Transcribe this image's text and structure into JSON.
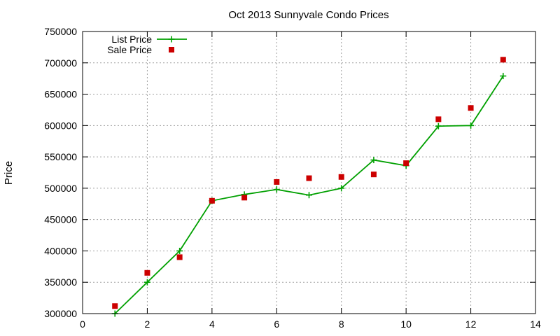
{
  "chart_data": {
    "type": "line",
    "title": "Oct 2013 Sunnyvale Condo Prices",
    "xlabel": "",
    "ylabel": "Price",
    "xlim": [
      0,
      14
    ],
    "ylim": [
      300000,
      750000
    ],
    "x_ticks": [
      0,
      2,
      4,
      6,
      8,
      10,
      12,
      14
    ],
    "y_ticks": [
      300000,
      350000,
      400000,
      450000,
      500000,
      550000,
      600000,
      650000,
      700000,
      750000
    ],
    "grid": true,
    "legend_position": "top-left",
    "series": [
      {
        "name": "List Price",
        "style": "line+plus",
        "color": "#00a000",
        "points": [
          [
            1,
            300000
          ],
          [
            2,
            350000
          ],
          [
            3,
            400000
          ],
          [
            4,
            480000
          ],
          [
            5,
            490000
          ],
          [
            6,
            498000
          ],
          [
            7,
            489000
          ],
          [
            8,
            500000
          ],
          [
            9,
            545000
          ],
          [
            10,
            536000
          ],
          [
            11,
            599000
          ],
          [
            12,
            600000
          ],
          [
            13,
            679000
          ]
        ]
      },
      {
        "name": "Sale Price",
        "style": "square",
        "color": "#cc0000",
        "points": [
          [
            1,
            312000
          ],
          [
            2,
            365000
          ],
          [
            3,
            390000
          ],
          [
            4,
            480000
          ],
          [
            5,
            485000
          ],
          [
            6,
            510000
          ],
          [
            7,
            516000
          ],
          [
            8,
            518000
          ],
          [
            9,
            522000
          ],
          [
            10,
            540000
          ],
          [
            11,
            610000
          ],
          [
            12,
            628000
          ],
          [
            13,
            705000
          ]
        ]
      }
    ]
  }
}
